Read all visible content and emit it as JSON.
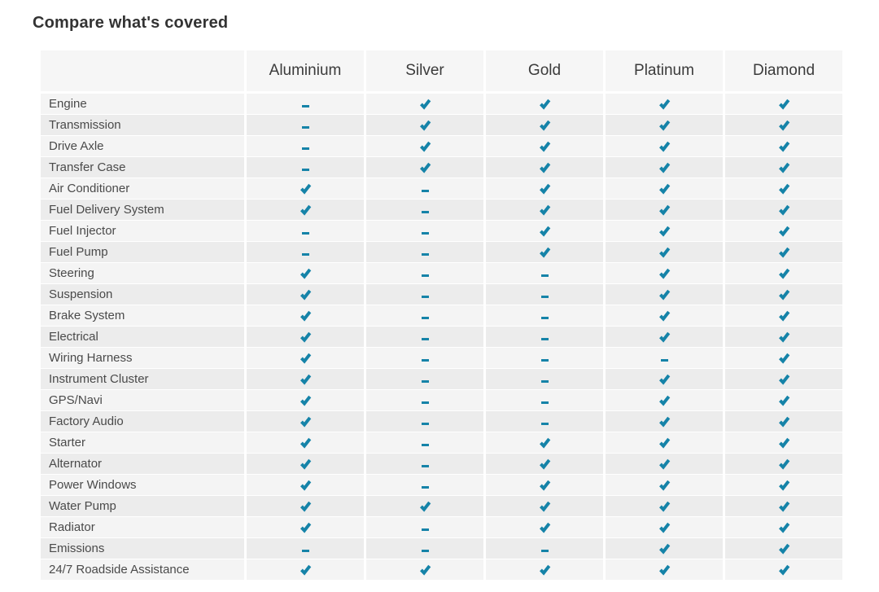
{
  "title": "Compare what's covered",
  "colors": {
    "accent_check": "#1583a8",
    "row_light": "#f4f4f4",
    "row_dark": "#ececec",
    "header_bg": "#f6f6f6",
    "title_color": "#333333",
    "label_color": "#4a4a4a"
  },
  "table": {
    "columns": [
      "",
      "Aluminium",
      "Silver",
      "Gold",
      "Platinum",
      "Diamond"
    ],
    "legend": {
      "covered": "check-icon",
      "not_covered": "dash-icon"
    },
    "rows": [
      {
        "label": "Engine",
        "values": [
          false,
          true,
          true,
          true,
          true
        ]
      },
      {
        "label": "Transmission",
        "values": [
          false,
          true,
          true,
          true,
          true
        ]
      },
      {
        "label": "Drive Axle",
        "values": [
          false,
          true,
          true,
          true,
          true
        ]
      },
      {
        "label": "Transfer Case",
        "values": [
          false,
          true,
          true,
          true,
          true
        ]
      },
      {
        "label": "Air Conditioner",
        "values": [
          true,
          false,
          true,
          true,
          true
        ]
      },
      {
        "label": "Fuel Delivery System",
        "values": [
          true,
          false,
          true,
          true,
          true
        ]
      },
      {
        "label": "Fuel Injector",
        "values": [
          false,
          false,
          true,
          true,
          true
        ]
      },
      {
        "label": "Fuel Pump",
        "values": [
          false,
          false,
          true,
          true,
          true
        ]
      },
      {
        "label": "Steering",
        "values": [
          true,
          false,
          false,
          true,
          true
        ]
      },
      {
        "label": "Suspension",
        "values": [
          true,
          false,
          false,
          true,
          true
        ]
      },
      {
        "label": "Brake System",
        "values": [
          true,
          false,
          false,
          true,
          true
        ]
      },
      {
        "label": "Electrical",
        "values": [
          true,
          false,
          false,
          true,
          true
        ]
      },
      {
        "label": "Wiring Harness",
        "values": [
          true,
          false,
          false,
          false,
          true
        ]
      },
      {
        "label": "Instrument Cluster",
        "values": [
          true,
          false,
          false,
          true,
          true
        ]
      },
      {
        "label": "GPS/Navi",
        "values": [
          true,
          false,
          false,
          true,
          true
        ]
      },
      {
        "label": "Factory Audio",
        "values": [
          true,
          false,
          false,
          true,
          true
        ]
      },
      {
        "label": "Starter",
        "values": [
          true,
          false,
          true,
          true,
          true
        ]
      },
      {
        "label": "Alternator",
        "values": [
          true,
          false,
          true,
          true,
          true
        ]
      },
      {
        "label": "Power Windows",
        "values": [
          true,
          false,
          true,
          true,
          true
        ]
      },
      {
        "label": "Water Pump",
        "values": [
          true,
          true,
          true,
          true,
          true
        ]
      },
      {
        "label": "Radiator",
        "values": [
          true,
          false,
          true,
          true,
          true
        ]
      },
      {
        "label": "Emissions",
        "values": [
          false,
          false,
          false,
          true,
          true
        ]
      },
      {
        "label": "24/7 Roadside Assistance",
        "values": [
          true,
          true,
          true,
          true,
          true
        ]
      }
    ]
  }
}
